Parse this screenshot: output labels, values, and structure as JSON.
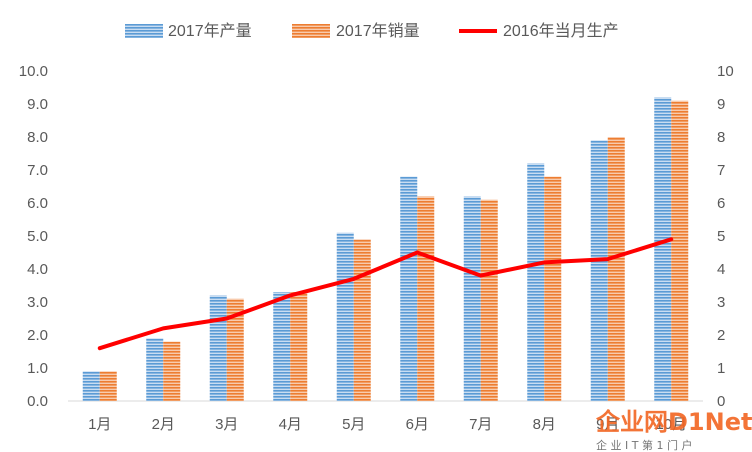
{
  "chart_data": {
    "type": "bar",
    "categories": [
      "1月",
      "2月",
      "3月",
      "4月",
      "5月",
      "6月",
      "7月",
      "8月",
      "9月",
      "10月"
    ],
    "series": [
      {
        "name": "2017年产量",
        "kind": "bar",
        "color": "#5B9BD5",
        "values": [
          0.9,
          1.9,
          3.2,
          3.3,
          5.1,
          6.8,
          6.2,
          7.2,
          7.9,
          9.2
        ]
      },
      {
        "name": "2017年销量",
        "kind": "bar",
        "color": "#ED7D31",
        "values": [
          0.9,
          1.8,
          3.1,
          3.3,
          4.9,
          6.2,
          6.1,
          6.8,
          8.0,
          9.1
        ]
      },
      {
        "name": "2016年当月生产",
        "kind": "line",
        "color": "#FF0000",
        "values": [
          1.6,
          2.2,
          2.5,
          3.2,
          3.7,
          4.5,
          3.8,
          4.2,
          4.3,
          4.9
        ]
      }
    ],
    "ylim": [
      0,
      10
    ],
    "yticks_left": [
      "0.0",
      "1.0",
      "2.0",
      "3.0",
      "4.0",
      "5.0",
      "6.0",
      "7.0",
      "8.0",
      "9.0",
      "10.0"
    ],
    "yticks_right": [
      "0",
      "1",
      "2",
      "3",
      "4",
      "5",
      "6",
      "7",
      "8",
      "9",
      "10"
    ],
    "legend_position": "top",
    "grid": false
  },
  "watermark": {
    "text": "企业网D1Net",
    "subtext": "企 业 I T 第 1 门 户"
  }
}
